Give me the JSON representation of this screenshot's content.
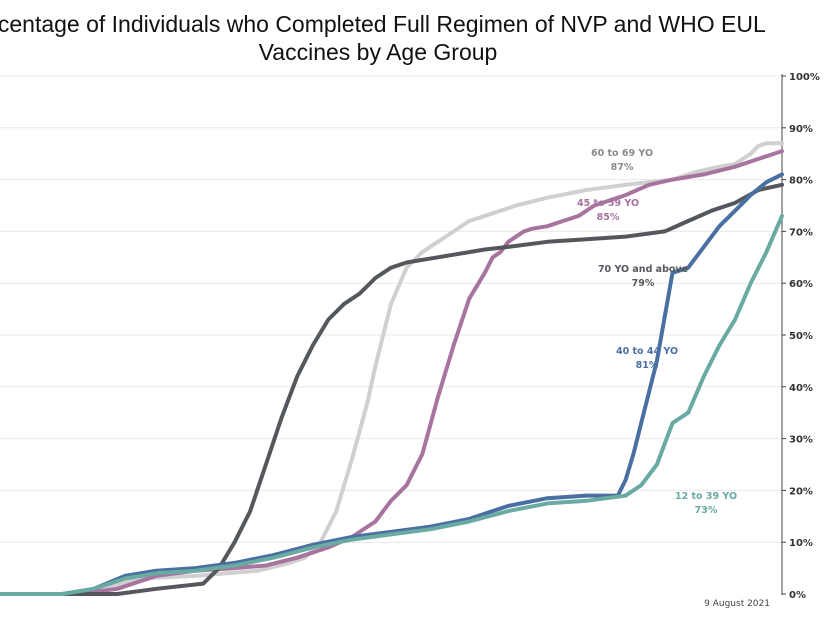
{
  "chart_data": {
    "type": "line",
    "title": "Percentage of Individuals who Completed Full Regimen of NVP and WHO EUL Vaccines by Age Group",
    "title_line1": "rcentage of Individuals who Completed Full Regimen of NVP and WHO EUL",
    "title_line2": "Vaccines by Age Group",
    "date_note": "9 August 2021",
    "ylim": [
      0,
      100
    ],
    "y_ticks": [
      "0%",
      "10%",
      "20%",
      "30%",
      "40%",
      "50%",
      "60%",
      "70%",
      "80%",
      "90%",
      "100%"
    ],
    "grid": true,
    "x_index_range": [
      0,
      100
    ],
    "series": [
      {
        "label_line1": "60 to 69 YO",
        "label_line2": "87%",
        "color": "#d0d0d0",
        "x": [
          0,
          8,
          12,
          18,
          25,
          33,
          37,
          39,
          41,
          43,
          45,
          47,
          48,
          49,
          50,
          52,
          54,
          56,
          58,
          60,
          63,
          66,
          70,
          75,
          80,
          86,
          89,
          92,
          94,
          95,
          96,
          97,
          98,
          100
        ],
        "y": [
          0,
          0,
          0.5,
          3,
          3.5,
          4.5,
          6,
          7,
          10,
          16,
          26,
          37,
          44,
          50,
          56,
          63,
          66,
          68,
          70,
          72,
          73.5,
          75,
          76.5,
          78,
          79,
          80,
          81.5,
          82.5,
          83,
          84,
          85,
          86.5,
          87,
          87
        ]
      },
      {
        "label_line1": "45 to 59 YO",
        "label_line2": "85%",
        "color": "#a7739f",
        "x": [
          0,
          10,
          15,
          20,
          25,
          30,
          34,
          38,
          42,
          45,
          48,
          50,
          52,
          54,
          56,
          58,
          60,
          62,
          63,
          64,
          65,
          66,
          67,
          68,
          70,
          72,
          74,
          76,
          80,
          83,
          86,
          90,
          94,
          97,
          100
        ],
        "y": [
          0,
          0,
          1,
          3.5,
          4.5,
          5,
          5.5,
          7,
          9,
          11,
          14,
          18,
          21,
          27,
          38,
          48,
          57,
          62,
          65,
          66,
          68,
          69,
          70,
          70.5,
          71,
          72,
          73,
          75,
          77,
          79,
          80,
          81,
          82.5,
          84,
          85.5
        ]
      },
      {
        "label_line1": "70 YO and above",
        "label_line2": "79%",
        "color": "#54585c",
        "x": [
          0,
          10,
          15,
          20,
          26,
          28,
          30,
          32,
          34,
          36,
          38,
          40,
          42,
          44,
          46,
          48,
          50,
          52,
          54,
          56,
          58,
          60,
          62,
          65,
          70,
          75,
          80,
          85,
          88,
          91,
          94,
          97,
          100
        ],
        "y": [
          0,
          0,
          0,
          1,
          2,
          5,
          10,
          16,
          25,
          34,
          42,
          48,
          53,
          56,
          58,
          61,
          63,
          64,
          64.5,
          65,
          65.5,
          66,
          66.5,
          67,
          68,
          68.5,
          69,
          70,
          72,
          74,
          75.5,
          78,
          79
        ]
      },
      {
        "label_line1": "40 to 44 YO",
        "label_line2": "81%",
        "color": "#4a70a2",
        "x": [
          0,
          8,
          12,
          16,
          20,
          25,
          30,
          35,
          40,
          45,
          50,
          55,
          60,
          65,
          70,
          75,
          79,
          80,
          81,
          82,
          84,
          86,
          88,
          90,
          92,
          94,
          96,
          98,
          100
        ],
        "y": [
          0,
          0,
          1,
          3.5,
          4.5,
          5,
          6,
          7.5,
          9.5,
          11,
          12,
          13,
          14.5,
          17,
          18.5,
          19,
          19,
          22,
          27,
          33,
          45,
          62,
          63,
          67,
          71,
          74,
          77,
          79.5,
          81
        ]
      },
      {
        "label_line1": "12 to 39 YO",
        "label_line2": "73%",
        "color": "#69aaa3",
        "x": [
          0,
          8,
          12,
          16,
          20,
          25,
          30,
          35,
          40,
          45,
          50,
          55,
          60,
          65,
          70,
          75,
          80,
          82,
          84,
          86,
          88,
          90,
          92,
          94,
          96,
          98,
          100
        ],
        "y": [
          0,
          0,
          1,
          3,
          4,
          4.5,
          5.5,
          7,
          9,
          10.5,
          11.5,
          12.5,
          14,
          16,
          17.5,
          18,
          19,
          21,
          25,
          33,
          35,
          42,
          48,
          53,
          60,
          66,
          73
        ]
      }
    ]
  }
}
